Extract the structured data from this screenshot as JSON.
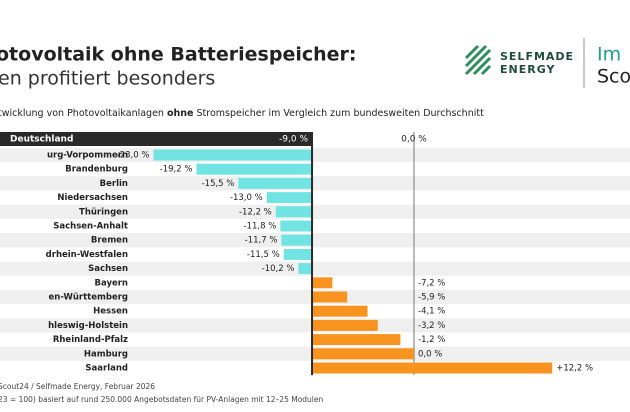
{
  "chart_data": {
    "type": "bar",
    "title_lines": [
      "otovoltaik ohne Batteriespeicher:",
      "en profitiert besonders"
    ],
    "subtitle_parts": [
      "twicklung von Photovoltaikanlagen ",
      "ohne",
      " Stromspeicher im Vergleich zum bundesweiten Durchschnitt"
    ],
    "logos": [
      "SELFMADE",
      "ENERGY",
      "Im",
      "Scou"
    ],
    "reference": {
      "label": "Deutschland",
      "value": -9.0,
      "value_label": "-9,0 %"
    },
    "categories": [
      "urg-Vorpommern",
      "Brandenburg",
      "Berlin",
      "Niedersachsen",
      "Thüringen",
      "Sachsen-Anhalt",
      "Bremen",
      "drhein-Westfalen",
      "Sachsen",
      "Bayern",
      "en-Württemberg",
      "Hessen",
      "hleswig-Holstein",
      "Rheinland-Pfalz",
      "Hamburg",
      "Saarland"
    ],
    "values": [
      -23.0,
      -19.2,
      -15.5,
      -13.0,
      -12.2,
      -11.8,
      -11.7,
      -11.5,
      -10.2,
      -7.2,
      -5.9,
      -4.1,
      -3.2,
      -1.2,
      0.0,
      12.2
    ],
    "value_labels": [
      "-23,0 %",
      "-19,2 %",
      "-15,5 %",
      "-13,0 %",
      "-12,2 %",
      "-11,8 %",
      "-11,7 %",
      "-11,5 %",
      "-10,2 %",
      "-7,2 %",
      "-5,9 %",
      "-4,1 %",
      "-3,2 %",
      "-1,2 %",
      "0,0 %",
      "+12,2 %"
    ],
    "xticks": [
      {
        "value": 0,
        "label": "0,0 %"
      }
    ],
    "colors": {
      "below": "#72e3e3",
      "above": "#f7931e"
    },
    "footer": [
      "Scout24 / Selfmade Energy, Februar 2026",
      "23 = 100) basiert auf rund 250.000 Angebotsdaten für PV-Anlagen mit 12–25 Modulen"
    ]
  }
}
